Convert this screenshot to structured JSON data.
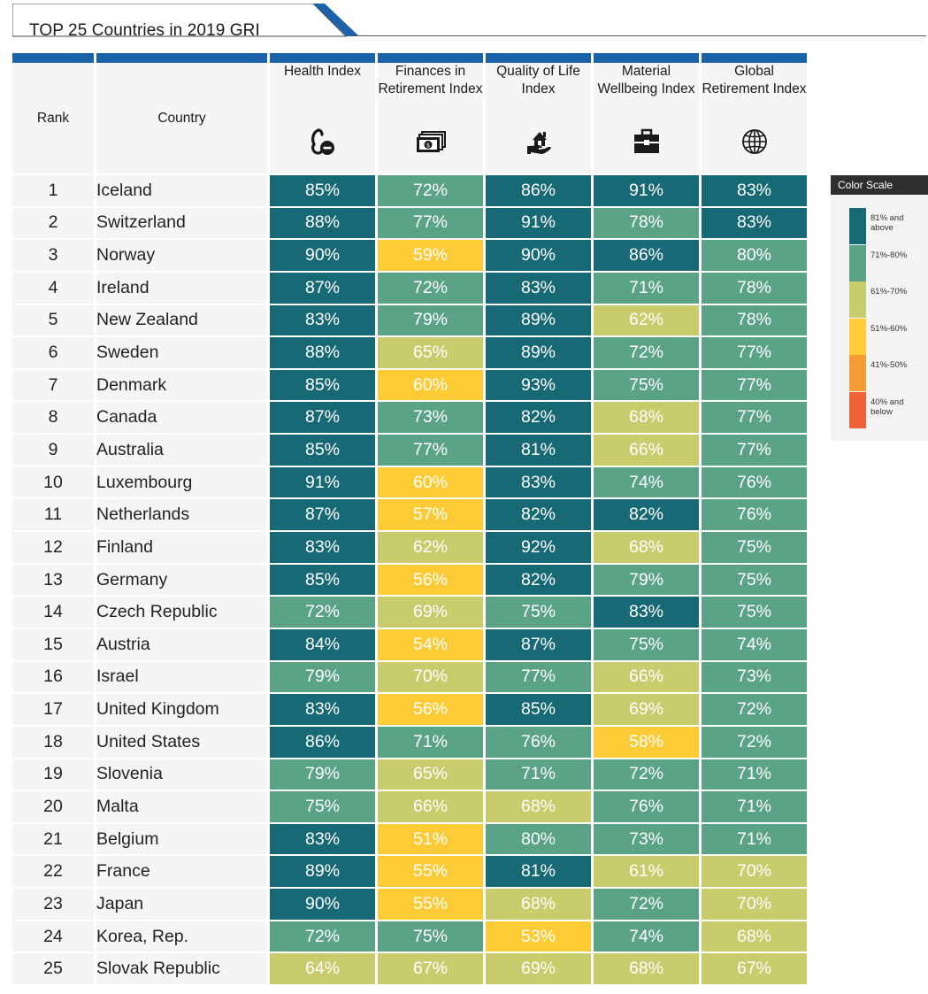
{
  "title": "TOP 25 Countries in 2019 GRI",
  "columns": {
    "rank": "Rank",
    "country": "Country",
    "metrics": [
      {
        "label": "Health Index",
        "icon": "health-icon"
      },
      {
        "label": "Finances in Retirement Index",
        "icon": "money-icon"
      },
      {
        "label": "Quality of Life Index",
        "icon": "house-hand-icon"
      },
      {
        "label": "Material Wellbeing Index",
        "icon": "briefcase-icon"
      },
      {
        "label": "Global Retirement Index",
        "icon": "globe-icon"
      }
    ]
  },
  "legend": {
    "title": "Color Scale",
    "items": [
      {
        "label": "81% and above",
        "color": "#176a75"
      },
      {
        "label": "71%-80%",
        "color": "#5aa387"
      },
      {
        "label": "61%-70%",
        "color": "#c9cc6c"
      },
      {
        "label": "51%-60%",
        "color": "#fccb36"
      },
      {
        "label": "41%-50%",
        "color": "#f69a34"
      },
      {
        "label": "40% and below",
        "color": "#f1623a"
      }
    ]
  },
  "chart_data": {
    "type": "table",
    "title": "TOP 25 Countries in 2019 GRI",
    "columns": [
      "Health Index",
      "Finances in Retirement Index",
      "Quality of Life Index",
      "Material Wellbeing Index",
      "Global Retirement Index"
    ],
    "rows": [
      {
        "rank": "1",
        "country": "Iceland",
        "values": [
          85,
          72,
          86,
          91,
          83
        ]
      },
      {
        "rank": "2",
        "country": "Switzerland",
        "values": [
          88,
          77,
          91,
          78,
          83
        ]
      },
      {
        "rank": "3",
        "country": "Norway",
        "values": [
          90,
          59,
          90,
          86,
          80
        ]
      },
      {
        "rank": "4",
        "country": "Ireland",
        "values": [
          87,
          72,
          83,
          71,
          78
        ]
      },
      {
        "rank": "5",
        "country": "New Zealand",
        "values": [
          83,
          79,
          89,
          62,
          78
        ]
      },
      {
        "rank": "6",
        "country": "Sweden",
        "values": [
          88,
          65,
          89,
          72,
          77
        ]
      },
      {
        "rank": "7",
        "country": "Denmark",
        "values": [
          85,
          60,
          93,
          75,
          77
        ]
      },
      {
        "rank": "8",
        "country": "Canada",
        "values": [
          87,
          73,
          82,
          68,
          77
        ]
      },
      {
        "rank": "9",
        "country": "Australia",
        "values": [
          85,
          77,
          81,
          66,
          77
        ]
      },
      {
        "rank": "10",
        "country": "Luxembourg",
        "values": [
          91,
          60,
          83,
          74,
          76
        ]
      },
      {
        "rank": "11",
        "country": "Netherlands",
        "values": [
          87,
          57,
          82,
          82,
          76
        ]
      },
      {
        "rank": "12",
        "country": "Finland",
        "values": [
          83,
          62,
          92,
          68,
          75
        ]
      },
      {
        "rank": "13",
        "country": "Germany",
        "values": [
          85,
          56,
          82,
          79,
          75
        ]
      },
      {
        "rank": "14",
        "country": "Czech Republic",
        "values": [
          72,
          69,
          75,
          83,
          75
        ]
      },
      {
        "rank": "15",
        "country": "Austria",
        "values": [
          84,
          54,
          87,
          75,
          74
        ]
      },
      {
        "rank": "16",
        "country": "Israel",
        "values": [
          79,
          70,
          77,
          66,
          73
        ]
      },
      {
        "rank": "17",
        "country": "United Kingdom",
        "values": [
          83,
          56,
          85,
          69,
          72
        ]
      },
      {
        "rank": "18",
        "country": "United States",
        "values": [
          86,
          71,
          76,
          58,
          72
        ]
      },
      {
        "rank": "19",
        "country": "Slovenia",
        "values": [
          79,
          65,
          71,
          72,
          71
        ]
      },
      {
        "rank": "20",
        "country": "Malta",
        "values": [
          75,
          66,
          68,
          76,
          71
        ]
      },
      {
        "rank": "21",
        "country": "Belgium",
        "values": [
          83,
          51,
          80,
          73,
          71
        ]
      },
      {
        "rank": "22",
        "country": "France",
        "values": [
          89,
          55,
          81,
          61,
          70
        ]
      },
      {
        "rank": "23",
        "country": "Japan",
        "values": [
          90,
          55,
          68,
          72,
          70
        ]
      },
      {
        "rank": "24",
        "country": "Korea, Rep.",
        "values": [
          72,
          75,
          53,
          74,
          68
        ]
      },
      {
        "rank": "25",
        "country": "Slovak Republic",
        "values": [
          64,
          67,
          69,
          68,
          67
        ]
      }
    ]
  }
}
